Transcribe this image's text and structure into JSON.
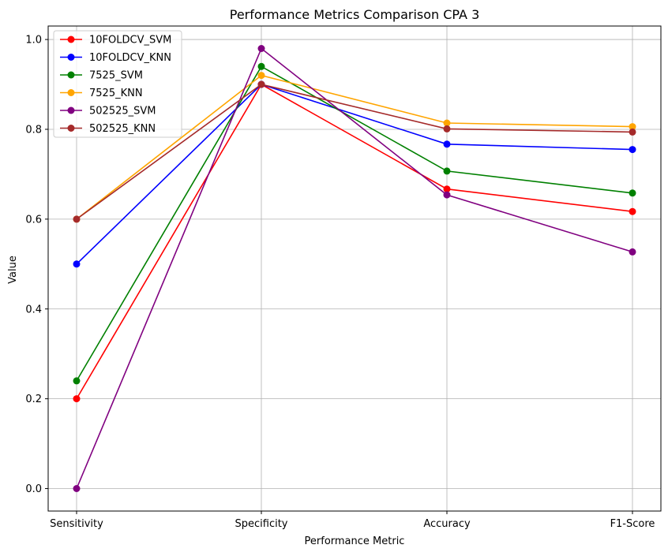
{
  "chart_data": {
    "type": "line",
    "title": "Performance Metrics Comparison CPA 3",
    "xlabel": "Performance Metric",
    "ylabel": "Value",
    "categories": [
      "Sensitivity",
      "Specificity",
      "Accuracy",
      "F1-Score"
    ],
    "ylim": [
      -0.05,
      1.03
    ],
    "yticks": [
      "0.0",
      "0.2",
      "0.4",
      "0.6",
      "0.8",
      "1.0"
    ],
    "grid": true,
    "legend_position": "top-left",
    "series": [
      {
        "name": "10FOLDCV_SVM",
        "color": "#ff0000",
        "values": [
          0.2,
          0.9,
          0.667,
          0.617
        ]
      },
      {
        "name": "10FOLDCV_KNN",
        "color": "#0000ff",
        "values": [
          0.5,
          0.9,
          0.767,
          0.755
        ]
      },
      {
        "name": "7525_SVM",
        "color": "#008000",
        "values": [
          0.24,
          0.94,
          0.707,
          0.658
        ]
      },
      {
        "name": "7525_KNN",
        "color": "#ffa500",
        "values": [
          0.6,
          0.92,
          0.814,
          0.806
        ]
      },
      {
        "name": "502525_SVM",
        "color": "#800080",
        "values": [
          0.0,
          0.98,
          0.654,
          0.527
        ]
      },
      {
        "name": "502525_KNN",
        "color": "#a52a2a",
        "values": [
          0.6,
          0.9,
          0.801,
          0.794
        ]
      }
    ]
  }
}
